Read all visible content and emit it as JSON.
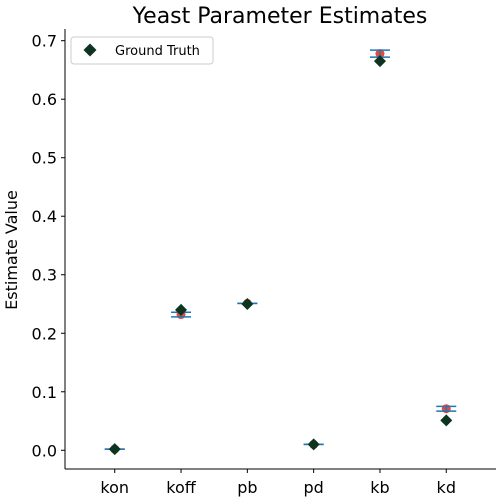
{
  "chart_data": {
    "type": "scatter",
    "title": "Yeast Parameter Estimates",
    "xlabel": "",
    "ylabel": "Estimate Value",
    "categories": [
      "kon",
      "koff",
      "pb",
      "pd",
      "kb",
      "kd"
    ],
    "ylim": [
      -0.032,
      0.72
    ],
    "yticks": [
      0.0,
      0.1,
      0.2,
      0.3,
      0.4,
      0.5,
      0.6,
      0.7
    ],
    "ytick_labels": [
      "0.0",
      "0.1",
      "0.2",
      "0.3",
      "0.4",
      "0.5",
      "0.6",
      "0.7"
    ],
    "grid": false,
    "legend_position": "top-left",
    "estimates": {
      "values": [
        0.002,
        0.232,
        0.251,
        0.01,
        0.678,
        0.071
      ],
      "lower": [
        0.002,
        0.228,
        0.251,
        0.01,
        0.672,
        0.067
      ],
      "upper": [
        0.002,
        0.236,
        0.251,
        0.01,
        0.684,
        0.075
      ],
      "color": "#e8493f",
      "errorbar_color": "#1f77b4"
    },
    "ground_truth": {
      "name": "Ground Truth",
      "values": [
        0.002,
        0.24,
        0.25,
        0.01,
        0.665,
        0.051
      ],
      "color": "#0d3321"
    }
  }
}
